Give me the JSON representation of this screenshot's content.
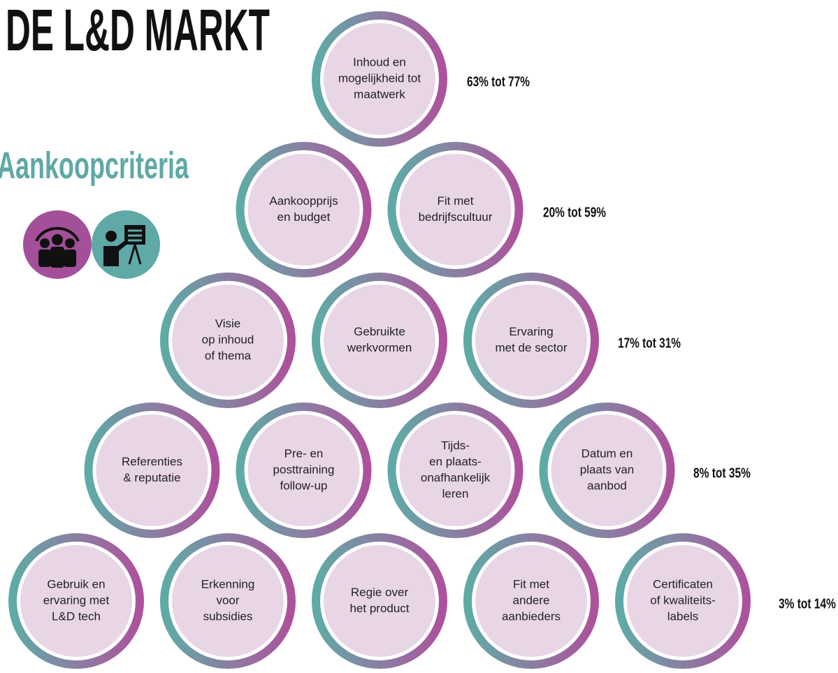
{
  "title": "DE L&D MARKT",
  "subtitle": "Aankoopcriteria",
  "rows": [
    {
      "range": "63% tot 77%",
      "items": [
        [
          "Inhoud en",
          "mogelijkheid tot",
          "maatwerk"
        ]
      ]
    },
    {
      "range": "20% tot 59%",
      "items": [
        [
          "Aankoopprijs",
          "en budget"
        ],
        [
          "Fit met",
          "bedrijfscultuur"
        ]
      ]
    },
    {
      "range": "17% tot 31%",
      "items": [
        [
          "Visie",
          "op inhoud",
          "of thema"
        ],
        [
          "Gebruikte",
          "werkvormen"
        ],
        [
          "Ervaring",
          "met de sector"
        ]
      ]
    },
    {
      "range": "8% tot 35%",
      "items": [
        [
          "Referenties",
          "& reputatie"
        ],
        [
          "Pre- en",
          "posttraining",
          "follow-up"
        ],
        [
          "Tijds-",
          "en plaats-",
          "onafhankelijk",
          "leren"
        ],
        [
          "Datum en",
          "plaats van",
          "aanbod"
        ]
      ]
    },
    {
      "range": "3% tot 14%",
      "items": [
        [
          "Gebruik en",
          "ervaring met",
          "L&D tech"
        ],
        [
          "Erkenning",
          "voor",
          "subsidies"
        ],
        [
          "Regie over",
          "het product"
        ],
        [
          "Fit met",
          "andere",
          "aanbieders"
        ],
        [
          "Certificaten",
          "of kwaliteits-",
          "labels"
        ]
      ]
    }
  ]
}
